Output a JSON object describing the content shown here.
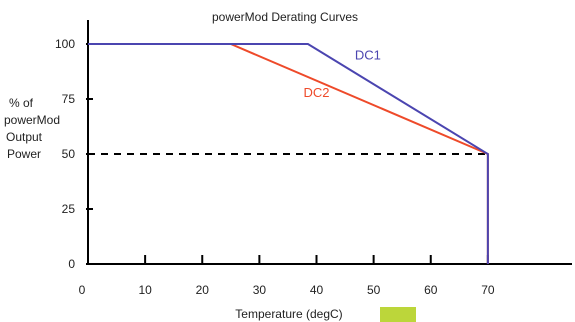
{
  "chart_data": {
    "type": "line",
    "title": "powerMod Derating Curves",
    "xlabel": "Temperature (degC)",
    "ylabel_lines": [
      "% of",
      "powerMod",
      "Output",
      "Power"
    ],
    "xlim": [
      0,
      80
    ],
    "ylim": [
      0,
      100
    ],
    "x_ticks": [
      0,
      10,
      20,
      30,
      40,
      50,
      60,
      70
    ],
    "y_ticks": [
      0,
      25,
      50,
      75,
      100
    ],
    "grid": false,
    "series": [
      {
        "name": "DC1",
        "color": "#4b45b0",
        "x": [
          0,
          38.5,
          70,
          70
        ],
        "y": [
          100,
          100,
          50,
          0
        ]
      },
      {
        "name": "DC2",
        "color": "#ee4a2a",
        "x": [
          0,
          25,
          70,
          70
        ],
        "y": [
          100,
          100,
          50,
          0
        ]
      }
    ],
    "reference_line": {
      "style": "dashed",
      "color": "#000000",
      "y": 50,
      "x": [
        0,
        70
      ]
    },
    "annotations": [
      {
        "text": "DC1",
        "color": "#4b45b0",
        "x": 49,
        "y": 93
      },
      {
        "text": "DC2",
        "color": "#ee4a2a",
        "x": 40,
        "y": 76
      }
    ],
    "colors": {
      "axis": "#000000",
      "swatch": "#bcd63a"
    }
  }
}
